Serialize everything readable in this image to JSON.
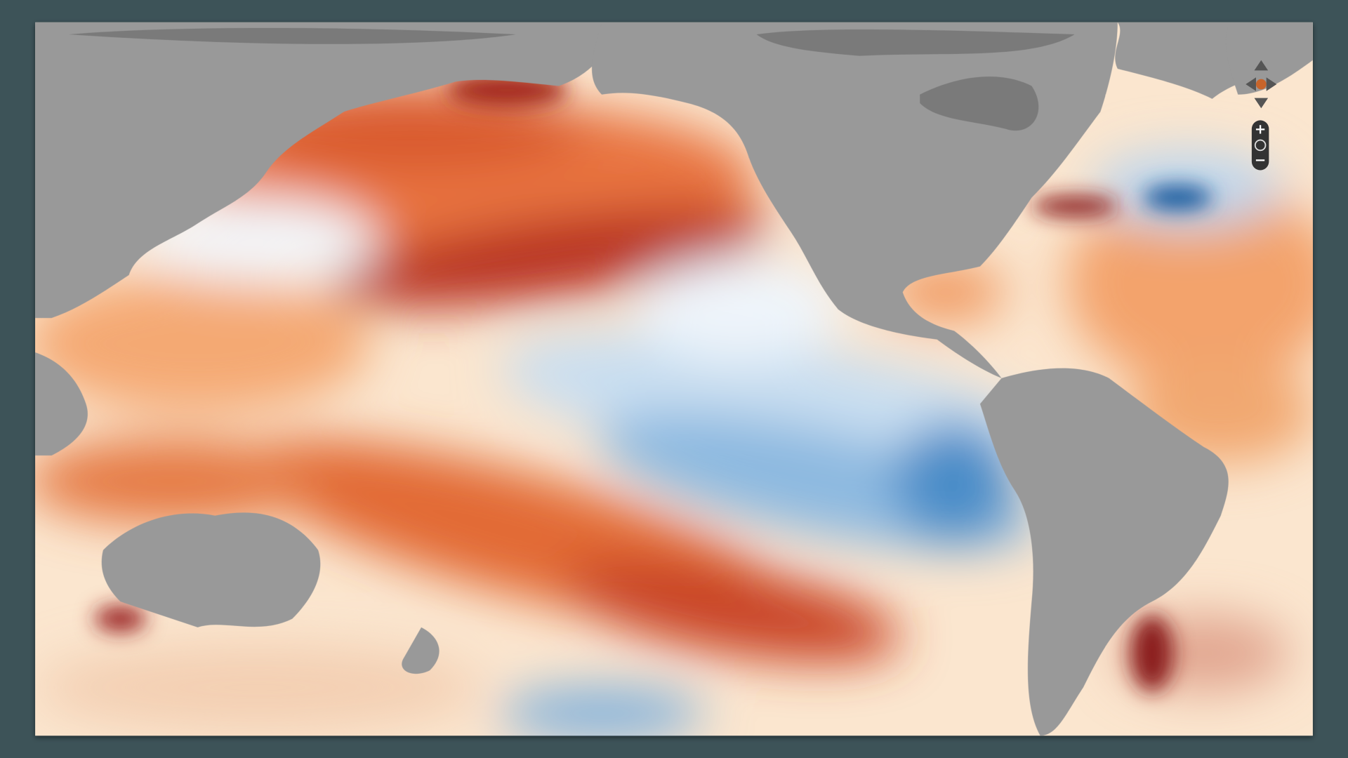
{
  "map": {
    "controls": {
      "zoom_in": "+",
      "zoom_out": "−"
    }
  }
}
